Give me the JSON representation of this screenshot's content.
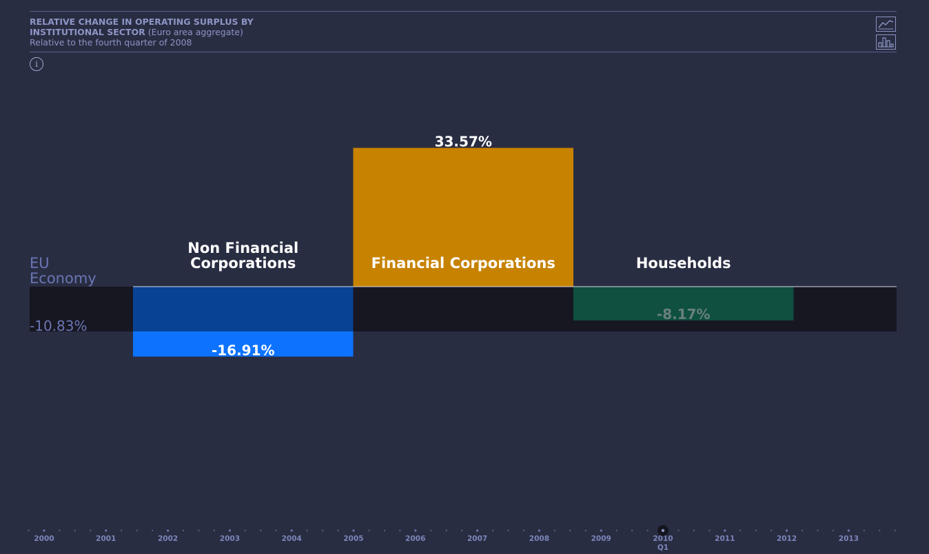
{
  "title": {
    "line1": "RELATIVE CHANGE IN OPERATING SURPLUS BY",
    "line2": "INSTITUTIONAL SECTOR",
    "line2_suffix": " (Euro area aggregate)",
    "subtitle": "Relative to the fourth quarter of 2008"
  },
  "controls": {
    "line_view_icon": "line-chart-icon",
    "bar_view_icon": "bar-chart-icon",
    "info_icon": "info-icon",
    "info_glyph": "i"
  },
  "chart_data": {
    "type": "bar",
    "categories": [
      "Non Financial Corporations",
      "Financial Corporations",
      "Households"
    ],
    "category_label_lines": [
      [
        "Non Financial",
        "Corporations"
      ],
      [
        "Financial Corporations"
      ],
      [
        "Households"
      ]
    ],
    "values": [
      -16.91,
      33.57,
      -8.17
    ],
    "value_labels": [
      "-16.91%",
      "33.57%",
      "-8.17%"
    ],
    "colors": [
      "#0d73ff",
      "#c78200",
      "#1b8a6e"
    ],
    "value_label_colors": [
      "#ffffff",
      "#ffffff",
      "#6a7f80"
    ],
    "reference": {
      "label_lines": [
        "EU",
        "Economy"
      ],
      "value": -10.83,
      "value_label": "-10.83%",
      "band_color": "#171722"
    },
    "unit": "%",
    "timeline": {
      "years": [
        "2000",
        "2001",
        "2002",
        "2003",
        "2004",
        "2005",
        "2006",
        "2007",
        "2008",
        "2009",
        "2010",
        "2011",
        "2012",
        "2013"
      ],
      "selected_year": "2010",
      "selected_quarter": "Q1"
    }
  }
}
